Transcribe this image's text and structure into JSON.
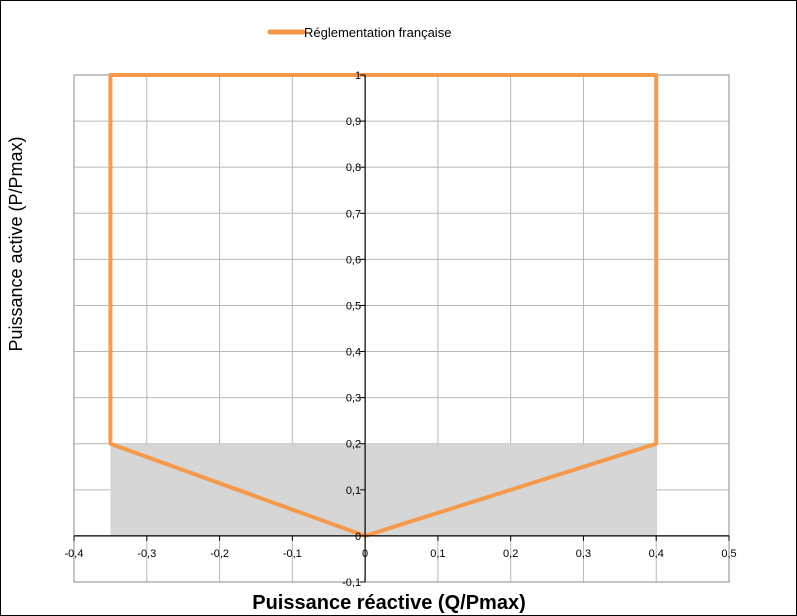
{
  "chart_data": {
    "type": "line",
    "xlabel": "Puissance réactive (Q/Pmax)",
    "ylabel": "Puissance active (P/Pmax)",
    "xlim": [
      -0.4,
      0.5
    ],
    "ylim": [
      -0.1,
      1
    ],
    "x_ticks": [
      -0.4,
      -0.3,
      -0.2,
      -0.1,
      0,
      0.1,
      0.2,
      0.3,
      0.4,
      0.5
    ],
    "x_tick_labels": [
      "-0,4",
      "-0,3",
      "-0,2",
      "-0,1",
      "0",
      "0,1",
      "0,2",
      "0,3",
      "0,4",
      "0,5"
    ],
    "y_ticks": [
      -0.1,
      0,
      0.1,
      0.2,
      0.3,
      0.4,
      0.5,
      0.6,
      0.7,
      0.8,
      0.9,
      1
    ],
    "y_tick_labels": [
      "-0,1",
      "0",
      "0,1",
      "0,2",
      "0,3",
      "0,4",
      "0,5",
      "0,6",
      "0,7",
      "0,8",
      "0,9",
      "1"
    ],
    "grid": true,
    "legend_position": "top-center",
    "series": [
      {
        "name": "Réglementation française",
        "color": "#f79646",
        "points": [
          [
            0,
            0
          ],
          [
            0.4,
            0.2
          ],
          [
            0.4,
            1
          ],
          [
            -0.35,
            1
          ],
          [
            -0.35,
            0.2
          ],
          [
            0,
            0
          ]
        ]
      }
    ],
    "shaded_regions": [
      {
        "x_range": [
          -0.35,
          0.4
        ],
        "y_range": [
          0,
          0.2
        ],
        "color": "#d4d4d4"
      }
    ]
  }
}
